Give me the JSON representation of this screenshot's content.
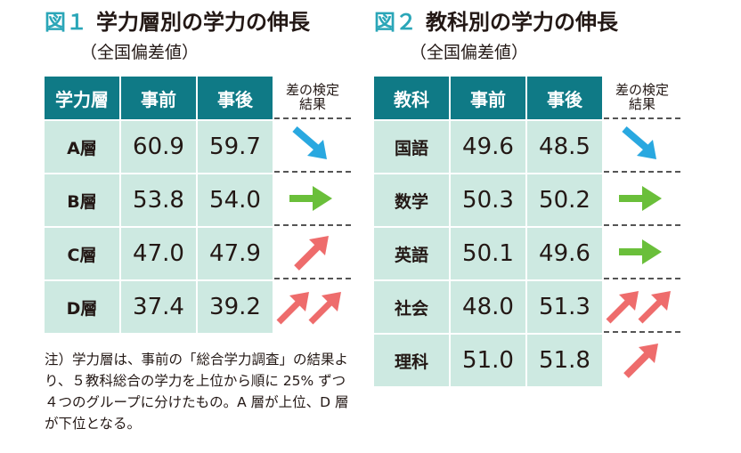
{
  "colors": {
    "header_bg": "#0f7a86",
    "cell_bg": "#cde9e1",
    "fig_number": "#2aa6b8",
    "arrow_down": "#29a8e0",
    "arrow_flat": "#6abf3a",
    "arrow_up": "#ee6c6c"
  },
  "fig1": {
    "number": "図１",
    "title": "学力層別の学力の伸長",
    "subtitle": "（全国偏差値）",
    "headers": [
      "学力層",
      "事前",
      "事後"
    ],
    "result_header": [
      "差の検定",
      "結果"
    ],
    "rows": [
      {
        "label": "A層",
        "pre": "60.9",
        "post": "59.7",
        "result": "down"
      },
      {
        "label": "B層",
        "pre": "53.8",
        "post": "54.0",
        "result": "flat"
      },
      {
        "label": "C層",
        "pre": "47.0",
        "post": "47.9",
        "result": "up"
      },
      {
        "label": "D層",
        "pre": "37.4",
        "post": "39.2",
        "result": "up2"
      }
    ]
  },
  "fig2": {
    "number": "図２",
    "title": "教科別の学力の伸長",
    "subtitle": "（全国偏差値）",
    "headers": [
      "教科",
      "事前",
      "事後"
    ],
    "result_header": [
      "差の検定",
      "結果"
    ],
    "rows": [
      {
        "label": "国語",
        "pre": "49.6",
        "post": "48.5",
        "result": "down"
      },
      {
        "label": "数学",
        "pre": "50.3",
        "post": "50.2",
        "result": "flat"
      },
      {
        "label": "英語",
        "pre": "50.1",
        "post": "49.6",
        "result": "flat"
      },
      {
        "label": "社会",
        "pre": "48.0",
        "post": "51.3",
        "result": "up2"
      },
      {
        "label": "理科",
        "pre": "51.0",
        "post": "51.8",
        "result": "up"
      }
    ]
  },
  "note": "注）学力層は、事前の「総合学力調査」の結果より、５教科総合の学力を上位から順に 25% ずつ４つのグループに分けたもの。A 層が上位、D 層が下位となる。"
}
